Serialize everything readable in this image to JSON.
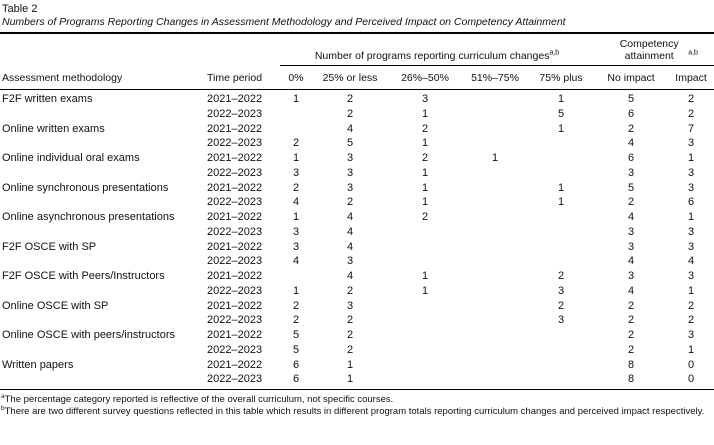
{
  "table": {
    "label": "Table 2",
    "caption": "Numbers of Programs Reporting Changes in Assessment Methodology and Perceived Impact on Competency Attainment",
    "col_groups": {
      "changes": {
        "label": "Number of programs reporting curriculum changes",
        "sup": "a,b"
      },
      "competency": {
        "label": "Competency attainment",
        "sup": "a,b"
      }
    },
    "columns": [
      "Assessment methodology",
      "Time period",
      "0%",
      "25% or less",
      "26%–50%",
      "51%–75%",
      "75% plus",
      "No impact",
      "Impact"
    ],
    "rows": [
      [
        "F2F written exams",
        "2021–2022",
        "1",
        "2",
        "3",
        "",
        "1",
        "5",
        "2"
      ],
      [
        "",
        "2022–2023",
        "",
        "2",
        "1",
        "",
        "5",
        "6",
        "2"
      ],
      [
        "Online written exams",
        "2021–2022",
        "",
        "4",
        "2",
        "",
        "1",
        "2",
        "7"
      ],
      [
        "",
        "2022–2023",
        "2",
        "5",
        "1",
        "",
        "",
        "4",
        "3"
      ],
      [
        "Online individual oral exams",
        "2021–2022",
        "1",
        "3",
        "2",
        "1",
        "",
        "6",
        "1"
      ],
      [
        "",
        "2022–2023",
        "3",
        "3",
        "1",
        "",
        "",
        "3",
        "3"
      ],
      [
        "Online synchronous presentations",
        "2021–2022",
        "2",
        "3",
        "1",
        "",
        "1",
        "5",
        "3"
      ],
      [
        "",
        "2022–2023",
        "4",
        "2",
        "1",
        "",
        "1",
        "2",
        "6"
      ],
      [
        "Online asynchronous presentations",
        "2021–2022",
        "1",
        "4",
        "2",
        "",
        "",
        "4",
        "1"
      ],
      [
        "",
        "2022–2023",
        "3",
        "4",
        "",
        "",
        "",
        "3",
        "3"
      ],
      [
        "F2F OSCE with SP",
        "2021–2022",
        "3",
        "4",
        "",
        "",
        "",
        "3",
        "3"
      ],
      [
        "",
        "2022–2023",
        "4",
        "3",
        "",
        "",
        "",
        "4",
        "4"
      ],
      [
        "F2F OSCE with Peers/Instructors",
        "2021–2022",
        "",
        "4",
        "1",
        "",
        "2",
        "3",
        "3"
      ],
      [
        "",
        "2022–2023",
        "1",
        "2",
        "1",
        "",
        "3",
        "4",
        "1"
      ],
      [
        "Online OSCE with SP",
        "2021–2022",
        "2",
        "3",
        "",
        "",
        "2",
        "2",
        "2"
      ],
      [
        "",
        "2022–2023",
        "2",
        "2",
        "",
        "",
        "3",
        "2",
        "2"
      ],
      [
        "Online OSCE with peers/instructors",
        "2021–2022",
        "5",
        "2",
        "",
        "",
        "",
        "2",
        "3"
      ],
      [
        "",
        "2022–2023",
        "5",
        "2",
        "",
        "",
        "",
        "2",
        "1"
      ],
      [
        "Written papers",
        "2021–2022",
        "6",
        "1",
        "",
        "",
        "",
        "8",
        "0"
      ],
      [
        "",
        "2022–2023",
        "6",
        "1",
        "",
        "",
        "",
        "8",
        "0"
      ]
    ]
  },
  "footnotes": [
    {
      "marker": "a",
      "text": "The percentage category reported is reflective of the overall curriculum, not specific courses."
    },
    {
      "marker": "b",
      "text": "There are two different survey questions reflected in this table which results in different program totals reporting curriculum changes and perceived impact respectively."
    }
  ]
}
